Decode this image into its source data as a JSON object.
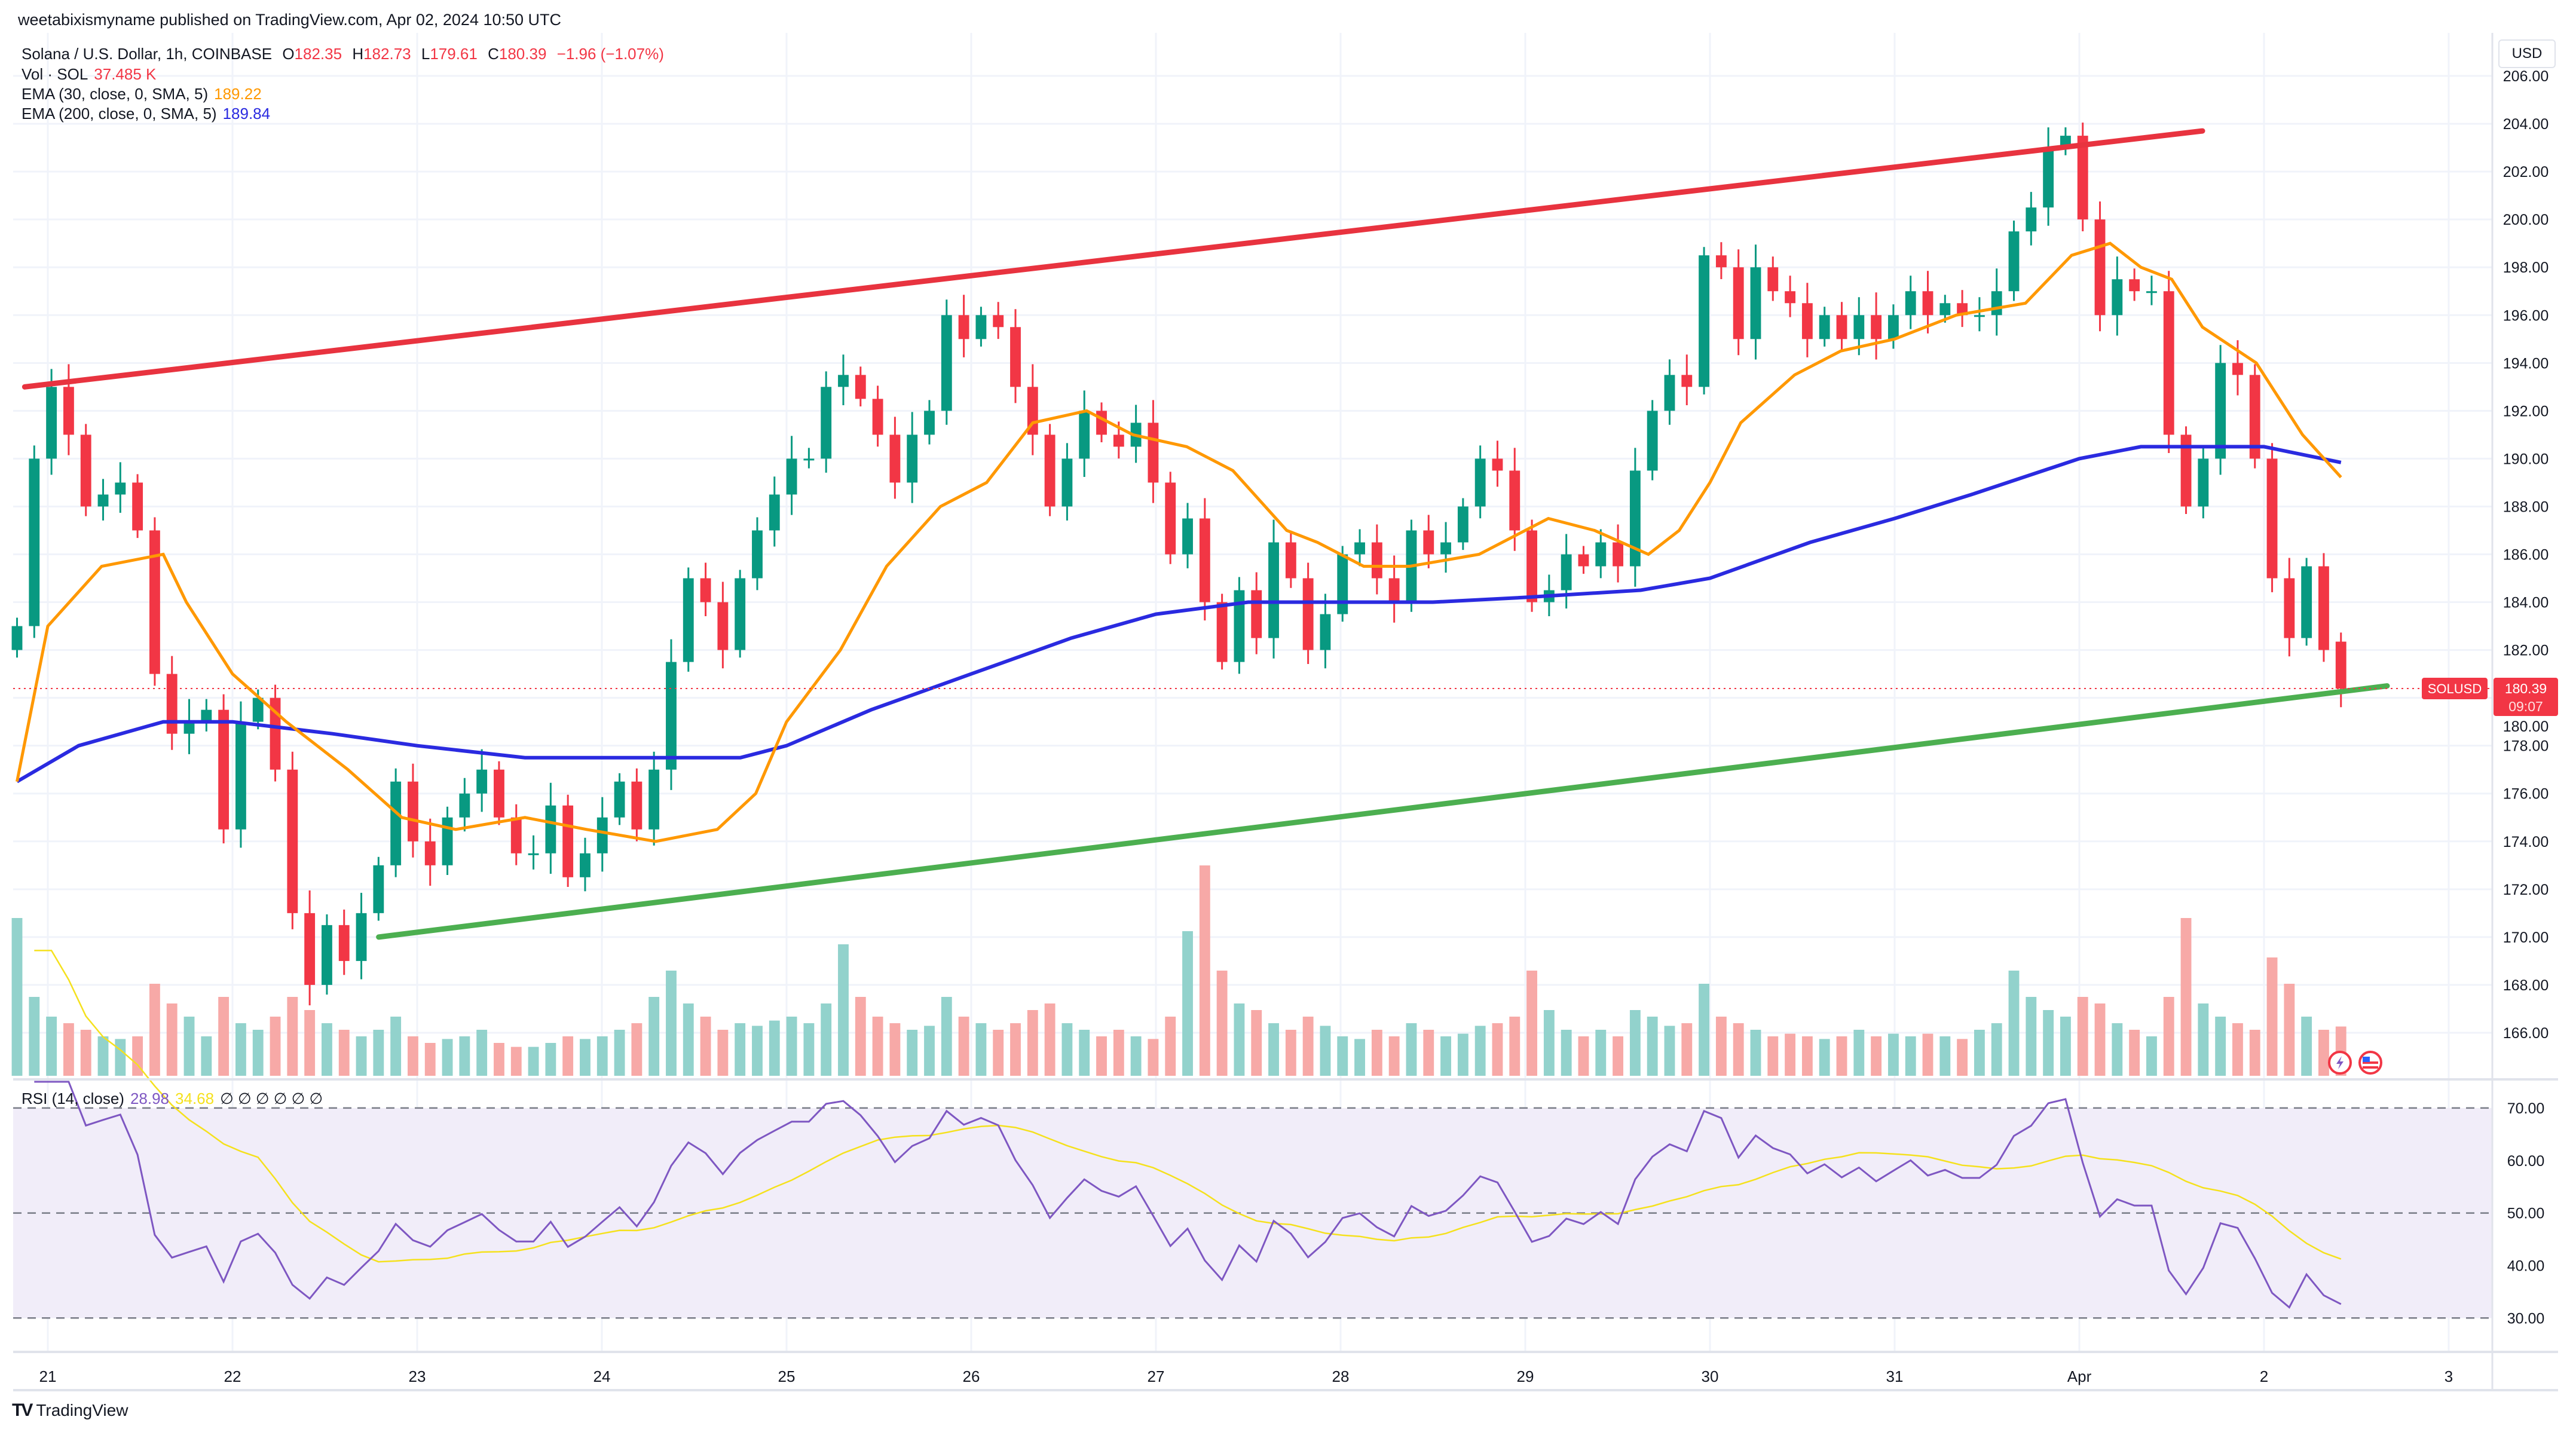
{
  "publisher_line": "weetabixismyname published on TradingView.com, Apr 02, 2024 10:50 UTC",
  "legend": {
    "symbol": "Solana / U.S. Dollar, 1h, COINBASE",
    "o_label": "O",
    "o": "182.35",
    "h_label": "H",
    "h": "182.73",
    "l_label": "L",
    "l": "179.61",
    "c_label": "C",
    "c": "180.39",
    "change": "−1.96 (−1.07%)",
    "vol_label": "Vol · SOL",
    "vol": "37.485 K",
    "ema30_label": "EMA (30, close, 0, SMA, 5)",
    "ema30": "189.22",
    "ema200_label": "EMA (200, close, 0, SMA, 5)",
    "ema200": "189.84",
    "rsi_label": "RSI (14, close)",
    "rsi": "28.98",
    "rsi_ma": "34.68",
    "rsi_extra": "∅ ∅ ∅ ∅ ∅ ∅"
  },
  "currency": "USD",
  "last_price": {
    "symbol": "SOLUSD",
    "price": "180.39",
    "countdown": "09:07"
  },
  "brand": "TradingView",
  "icons": [
    "lightning-icon",
    "us-flag-icon"
  ],
  "colors": {
    "up": "#089981",
    "down": "#f23645",
    "vol_up": "#92d2cc",
    "vol_down": "#f7a9a7",
    "ema30": "#ff9800",
    "ema200": "#2a2ae0",
    "resistance": "#e8333f",
    "support": "#4caf50",
    "rsi": "#7e57c2",
    "rsi_ma": "#f5e11d",
    "rsi_band": "#f1edf9"
  },
  "chart_data": {
    "type": "candlestick",
    "time_range": [
      "2024-03-20T20:00Z",
      "2024-04-02T10:00Z"
    ],
    "x_ticks": [
      {
        "t": "2024-03-21T00:00Z",
        "label": "21"
      },
      {
        "t": "2024-03-22T00:00Z",
        "label": "22"
      },
      {
        "t": "2024-03-23T00:00Z",
        "label": "23"
      },
      {
        "t": "2024-03-24T00:00Z",
        "label": "24"
      },
      {
        "t": "2024-03-25T00:00Z",
        "label": "25"
      },
      {
        "t": "2024-03-26T00:00Z",
        "label": "26"
      },
      {
        "t": "2024-03-27T00:00Z",
        "label": "27"
      },
      {
        "t": "2024-03-28T00:00Z",
        "label": "28"
      },
      {
        "t": "2024-03-29T00:00Z",
        "label": "29"
      },
      {
        "t": "2024-03-30T00:00Z",
        "label": "30"
      },
      {
        "t": "2024-03-31T00:00Z",
        "label": "31"
      },
      {
        "t": "2024-04-01T00:00Z",
        "label": "Apr"
      },
      {
        "t": "2024-04-02T00:00Z",
        "label": "2"
      },
      {
        "t": "2024-04-03T00:00Z",
        "label": "3"
      }
    ],
    "y_ticks": [
      "206.00",
      "204.00",
      "202.00",
      "200.00",
      "198.00",
      "196.00",
      "194.00",
      "192.00",
      "190.00",
      "188.00",
      "186.00",
      "184.00",
      "182.00",
      "180.00",
      "178.00",
      "176.00",
      "174.00",
      "172.00",
      "170.00",
      "168.00",
      "166.00"
    ],
    "ylim": [
      164.2,
      207.8
    ],
    "closes": [
      183,
      190,
      193,
      191,
      188,
      188.5,
      189,
      187,
      181,
      178.5,
      179,
      179.5,
      174.5,
      179,
      180,
      177,
      171,
      168,
      170.5,
      169,
      171,
      173,
      176.5,
      174,
      173,
      175,
      176,
      177,
      175,
      173.5,
      173.5,
      175.5,
      172.5,
      173.5,
      175,
      176.5,
      174.5,
      177,
      181.5,
      185,
      184,
      182,
      185,
      187,
      188.5,
      190,
      190,
      193,
      193.5,
      192.5,
      191,
      189,
      191,
      192,
      196,
      195,
      196,
      195.5,
      193,
      191,
      188,
      190,
      192,
      191,
      190.5,
      191.5,
      189,
      186,
      187.5,
      184,
      181.5,
      184.5,
      182.5,
      186.5,
      185,
      182,
      183.5,
      186,
      186.5,
      185,
      184,
      187,
      186,
      186.5,
      188,
      190,
      189.5,
      187,
      184,
      184.5,
      186,
      185.5,
      186.5,
      185.5,
      189.5,
      192,
      193.5,
      193,
      198.5,
      198,
      195,
      198,
      197,
      196.5,
      195,
      196,
      195,
      196,
      195,
      196,
      197,
      196,
      196.5,
      196,
      196,
      197,
      199.5,
      200.5,
      203,
      203.5,
      200,
      196,
      197.5,
      197,
      197,
      191,
      188,
      190,
      194,
      193.5,
      190,
      185,
      182.5,
      185.5,
      182,
      180.39
    ],
    "volumes_k": [
      120,
      60,
      45,
      40,
      35,
      30,
      28,
      30,
      70,
      55,
      45,
      30,
      60,
      40,
      35,
      45,
      60,
      50,
      40,
      35,
      30,
      35,
      45,
      30,
      25,
      28,
      30,
      35,
      25,
      22,
      22,
      25,
      30,
      28,
      30,
      35,
      40,
      60,
      80,
      55,
      45,
      35,
      40,
      38,
      42,
      45,
      40,
      55,
      100,
      60,
      45,
      40,
      35,
      38,
      60,
      45,
      40,
      35,
      40,
      50,
      55,
      40,
      35,
      30,
      35,
      30,
      28,
      45,
      110,
      160,
      80,
      55,
      50,
      40,
      35,
      45,
      38,
      30,
      28,
      35,
      30,
      40,
      35,
      30,
      32,
      38,
      40,
      45,
      80,
      50,
      35,
      30,
      35,
      30,
      50,
      45,
      38,
      40,
      70,
      45,
      40,
      35,
      30,
      32,
      30,
      28,
      30,
      35,
      30,
      32,
      30,
      32,
      30,
      28,
      35,
      40,
      80,
      60,
      50,
      45,
      60,
      55,
      40,
      35,
      30,
      60,
      120,
      55,
      45,
      40,
      35,
      90,
      70,
      45,
      35,
      37.485
    ],
    "ema30": [
      [
        "2024-03-20T20:00Z",
        176.5
      ],
      [
        "2024-03-21T00:00Z",
        183
      ],
      [
        "2024-03-21T07:00Z",
        185.5
      ],
      [
        "2024-03-21T15:00Z",
        186
      ],
      [
        "2024-03-21T18:00Z",
        184
      ],
      [
        "2024-03-22T00:00Z",
        181
      ],
      [
        "2024-03-22T07:00Z",
        179
      ],
      [
        "2024-03-22T15:00Z",
        177
      ],
      [
        "2024-03-22T22:00Z",
        175
      ],
      [
        "2024-03-23T05:00Z",
        174.5
      ],
      [
        "2024-03-23T14:00Z",
        175
      ],
      [
        "2024-03-23T22:00Z",
        174.5
      ],
      [
        "2024-03-24T07:00Z",
        174
      ],
      [
        "2024-03-24T15:00Z",
        174.5
      ],
      [
        "2024-03-24T20:00Z",
        176
      ],
      [
        "2024-03-25T00:00Z",
        179
      ],
      [
        "2024-03-25T07:00Z",
        182
      ],
      [
        "2024-03-25T13:00Z",
        185.5
      ],
      [
        "2024-03-25T20:00Z",
        188
      ],
      [
        "2024-03-26T02:00Z",
        189
      ],
      [
        "2024-03-26T08:00Z",
        191.5
      ],
      [
        "2024-03-26T15:00Z",
        192
      ],
      [
        "2024-03-26T21:00Z",
        191
      ],
      [
        "2024-03-27T04:00Z",
        190.5
      ],
      [
        "2024-03-27T10:00Z",
        189.5
      ],
      [
        "2024-03-27T17:00Z",
        187
      ],
      [
        "2024-03-27T21:00Z",
        186.5
      ],
      [
        "2024-03-28T03:00Z",
        185.5
      ],
      [
        "2024-03-28T09:00Z",
        185.5
      ],
      [
        "2024-03-28T18:00Z",
        186
      ],
      [
        "2024-03-29T03:00Z",
        187.5
      ],
      [
        "2024-03-29T09:00Z",
        187
      ],
      [
        "2024-03-29T16:00Z",
        186
      ],
      [
        "2024-03-29T20:00Z",
        187
      ],
      [
        "2024-03-30T00:00Z",
        189
      ],
      [
        "2024-03-30T04:00Z",
        191.5
      ],
      [
        "2024-03-30T11:00Z",
        193.5
      ],
      [
        "2024-03-30T17:00Z",
        194.5
      ],
      [
        "2024-03-31T00:00Z",
        195
      ],
      [
        "2024-03-31T08:00Z",
        196
      ],
      [
        "2024-03-31T17:00Z",
        196.5
      ],
      [
        "2024-03-31T23:00Z",
        198.5
      ],
      [
        "2024-04-01T04:00Z",
        199
      ],
      [
        "2024-04-01T08:00Z",
        198
      ],
      [
        "2024-04-01T12:00Z",
        197.5
      ],
      [
        "2024-04-01T16:00Z",
        195.5
      ],
      [
        "2024-04-01T23:00Z",
        194
      ],
      [
        "2024-04-02T05:00Z",
        191
      ],
      [
        "2024-04-02T10:00Z",
        189.22
      ]
    ],
    "ema200": [
      [
        "2024-03-20T20:00Z",
        176.5
      ],
      [
        "2024-03-21T04:00Z",
        178
      ],
      [
        "2024-03-21T15:00Z",
        179
      ],
      [
        "2024-03-22T00:00Z",
        179
      ],
      [
        "2024-03-22T13:00Z",
        178.5
      ],
      [
        "2024-03-23T00:00Z",
        178
      ],
      [
        "2024-03-23T14:00Z",
        177.5
      ],
      [
        "2024-03-24T07:00Z",
        177.5
      ],
      [
        "2024-03-24T18:00Z",
        177.5
      ],
      [
        "2024-03-25T00:00Z",
        178
      ],
      [
        "2024-03-25T11:00Z",
        179.5
      ],
      [
        "2024-03-26T00:00Z",
        181
      ],
      [
        "2024-03-26T13:00Z",
        182.5
      ],
      [
        "2024-03-27T00:00Z",
        183.5
      ],
      [
        "2024-03-27T12:00Z",
        184
      ],
      [
        "2024-03-28T00:00Z",
        184
      ],
      [
        "2024-03-28T12:00Z",
        184
      ],
      [
        "2024-03-29T00:00Z",
        184.2
      ],
      [
        "2024-03-29T15:00Z",
        184.5
      ],
      [
        "2024-03-30T00:00Z",
        185
      ],
      [
        "2024-03-30T13:00Z",
        186.5
      ],
      [
        "2024-03-31T00:00Z",
        187.5
      ],
      [
        "2024-03-31T10:00Z",
        188.5
      ],
      [
        "2024-04-01T00:00Z",
        190
      ],
      [
        "2024-04-01T08:00Z",
        190.5
      ],
      [
        "2024-04-01T16:00Z",
        190.5
      ],
      [
        "2024-04-02T00:00Z",
        190.5
      ],
      [
        "2024-04-02T10:00Z",
        189.84
      ]
    ],
    "trendlines": [
      {
        "role": "resistance",
        "from": [
          "2024-03-20T21:00Z",
          193.0
        ],
        "to": [
          "2024-04-01T16:00Z",
          203.7
        ]
      },
      {
        "role": "support",
        "from": [
          "2024-03-22T19:00Z",
          170.0
        ],
        "to": [
          "2024-04-02T16:00Z",
          180.5
        ]
      }
    ],
    "rsi": {
      "period": 14,
      "ma_period": 14,
      "ylim": [
        24,
        75
      ],
      "levels": [
        70,
        50,
        30
      ],
      "y_ticks": [
        "70.00",
        "60.00",
        "50.00",
        "40.00",
        "30.00"
      ]
    }
  }
}
